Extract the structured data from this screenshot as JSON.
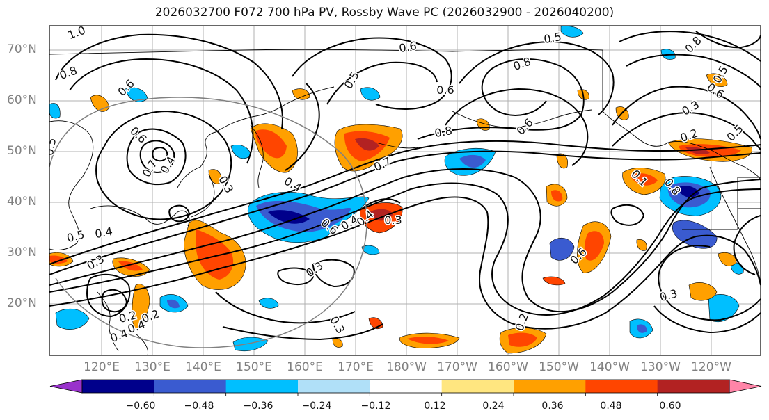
{
  "title": "2026032700 F072 700 hPa PV, Rossby Wave PC (2026032900 - 2026040200)",
  "lat_labels": [
    "70°N",
    "60°N",
    "50°N",
    "40°N",
    "30°N",
    "20°N"
  ],
  "lon_labels": [
    "120°E",
    "130°E",
    "140°E",
    "150°E",
    "160°E",
    "170°E",
    "180°W",
    "170°W",
    "160°W",
    "150°W",
    "140°W",
    "130°W",
    "120°W"
  ],
  "colorbar": {
    "ticks": [
      "−0.60",
      "−0.48",
      "−0.36",
      "−0.24",
      "−0.12",
      "0.12",
      "0.24",
      "0.36",
      "0.48",
      "0.60"
    ],
    "colors": [
      "#9932cc",
      "#00008b",
      "#3a5bd0",
      "#00bfff",
      "#b0e0f8",
      "#ffffff",
      "#ffe680",
      "#ffa000",
      "#ff4500",
      "#b22222",
      "#ff85a8"
    ]
  },
  "contour_labels": [
    "1.0",
    "0.8",
    "0.6",
    "0.5",
    "0.6",
    "0.7",
    "0.4",
    "0.3",
    "0.4",
    "0.6",
    "0.5",
    "0.4",
    "0.3",
    "0.6",
    "0.4",
    "0.3",
    "0.2",
    "0.4",
    "0.7",
    "0.8",
    "0.5",
    "0.6",
    "0.8",
    "0.6",
    "0.5",
    "0.8",
    "0.6",
    "0.3",
    "0.2",
    "0.5",
    "0.1",
    "0.8",
    "0.6",
    "0.3",
    "0.4",
    "0.2",
    "0.3",
    "0.2",
    "0.3",
    "0.5",
    "0.4"
  ]
}
